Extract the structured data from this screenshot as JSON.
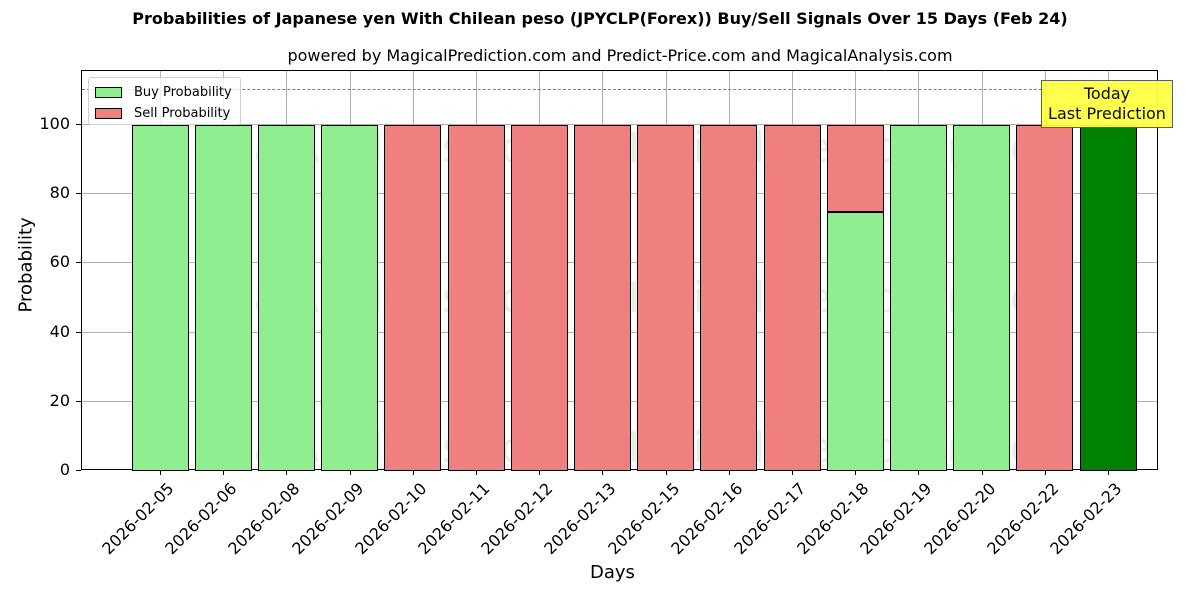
{
  "title": "Probabilities of Japanese yen With Chilean peso (JPYCLP(Forex)) Buy/Sell Signals Over 15 Days (Feb 24)",
  "subtitle": "powered by MagicalPrediction.com and Predict-Price.com and MagicalAnalysis.com",
  "xlabel": "Days",
  "ylabel": "Probability",
  "legend": {
    "buy_label": "Buy Probability",
    "sell_label": "Sell Probability"
  },
  "annotation": {
    "line1": "Today",
    "line2": "Last Prediction"
  },
  "watermarks": [
    "MagicalAnalysis.com",
    "MagicalPrediction.com"
  ],
  "colors": {
    "buy": "#90ee90",
    "sell": "#f08080",
    "today": "#008000",
    "annotation_bg": "#ffff44",
    "reference_line": "#7f7f7f"
  },
  "y_ticks": [
    "0",
    "20",
    "40",
    "60",
    "80",
    "100"
  ],
  "chart_data": {
    "type": "bar",
    "stacked": true,
    "title": "Probabilities of Japanese yen With Chilean peso (JPYCLP(Forex)) Buy/Sell Signals Over 15 Days (Feb 24)",
    "subtitle": "powered by MagicalPrediction.com and Predict-Price.com and MagicalAnalysis.com",
    "xlabel": "Days",
    "ylabel": "Probability",
    "ylim": [
      0,
      115
    ],
    "yticks": [
      0,
      20,
      40,
      60,
      80,
      100
    ],
    "grid": true,
    "legend_position": "upper left",
    "reference_line": {
      "y": 110,
      "style": "dashed",
      "color": "#7f7f7f"
    },
    "categories": [
      "2026-02-05",
      "2026-02-06",
      "2026-02-08",
      "2026-02-09",
      "2026-02-10",
      "2026-02-11",
      "2026-02-12",
      "2026-02-13",
      "2026-02-15",
      "2026-02-16",
      "2026-02-17",
      "2026-02-18",
      "2026-02-19",
      "2026-02-20",
      "2026-02-22",
      "2026-02-23"
    ],
    "series": [
      {
        "name": "Buy Probability",
        "color": "#90ee90",
        "values": [
          100,
          100,
          100,
          100,
          0,
          0,
          0,
          0,
          0,
          0,
          0,
          75,
          100,
          100,
          0,
          100
        ]
      },
      {
        "name": "Sell Probability",
        "color": "#f08080",
        "values": [
          0,
          0,
          0,
          0,
          100,
          100,
          100,
          100,
          100,
          100,
          100,
          25,
          0,
          0,
          100,
          0
        ]
      }
    ],
    "highlight": {
      "category": "2026-02-23",
      "color": "#008000",
      "annotation": "Today\nLast Prediction"
    }
  }
}
